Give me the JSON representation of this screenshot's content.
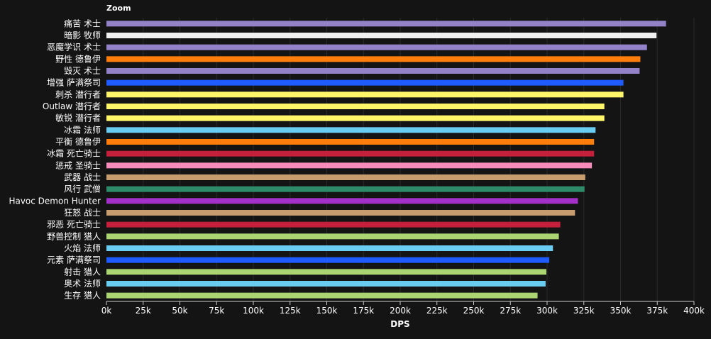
{
  "zoom_label": "Zoom",
  "chart_data": {
    "type": "bar",
    "orientation": "horizontal",
    "xlabel": "DPS",
    "ylabel": "",
    "xlim": [
      0,
      400000
    ],
    "x_ticks": [
      0,
      25000,
      50000,
      75000,
      100000,
      125000,
      150000,
      175000,
      200000,
      225000,
      250000,
      275000,
      300000,
      325000,
      350000,
      375000,
      400000
    ],
    "x_tick_labels": [
      "0k",
      "25k",
      "50k",
      "75k",
      "100k",
      "125k",
      "150k",
      "175k",
      "200k",
      "225k",
      "250k",
      "275k",
      "300k",
      "325k",
      "350k",
      "375k",
      "400k"
    ],
    "grid": true,
    "legend": "none",
    "categories": [
      "痛苦 术士",
      "暗影 牧师",
      "恶魔学识 术士",
      "野性 德鲁伊",
      "毁灭 术士",
      "增强 萨满祭司",
      "刺杀 潜行者",
      "Outlaw 潜行者",
      "敏锐 潜行者",
      "冰霜 法师",
      "平衡 德鲁伊",
      "冰霜 死亡骑士",
      "惩戒 圣骑士",
      "武器 战士",
      "风行 武僧",
      "Havoc Demon Hunter",
      "狂怒 战士",
      "邪恶 死亡骑士",
      "野兽控制 猎人",
      "火焰 法师",
      "元素 萨满祭司",
      "射击 猎人",
      "奥术 法师",
      "生存 猎人"
    ],
    "values": [
      381000,
      374500,
      368000,
      363500,
      363000,
      352000,
      352000,
      339000,
      339000,
      333000,
      332000,
      332000,
      330500,
      326000,
      325500,
      321000,
      319000,
      309000,
      308000,
      304000,
      301500,
      299500,
      299000,
      293500
    ],
    "colors": [
      "#9482c9",
      "#f0f0f0",
      "#9482c9",
      "#ff7d0a",
      "#9482c9",
      "#1f5bff",
      "#fff569",
      "#fff569",
      "#fff569",
      "#69ccf0",
      "#ff7d0a",
      "#c41f3b",
      "#f58cba",
      "#c79c6e",
      "#2e8b6a",
      "#a330c9",
      "#c79c6e",
      "#c41f3b",
      "#abd473",
      "#69ccf0",
      "#1f5bff",
      "#abd473",
      "#69ccf0",
      "#abd473"
    ]
  }
}
